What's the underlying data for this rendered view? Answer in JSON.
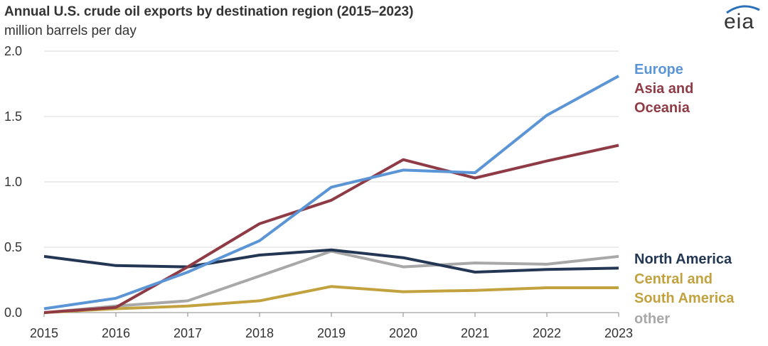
{
  "header": {
    "title": "Annual U.S. crude oil exports by destination region (2015–2023)",
    "subtitle": "million barrels per day",
    "logo_text": "eia"
  },
  "chart_data": {
    "type": "line",
    "title": "Annual U.S. crude oil exports by destination region (2015–2023)",
    "ylabel": "million barrels per day",
    "xlabel": "",
    "x": [
      2015,
      2016,
      2017,
      2018,
      2019,
      2020,
      2021,
      2022,
      2023
    ],
    "ylim": [
      0,
      2.0
    ],
    "yticks": [
      "0.0",
      "0.5",
      "1.0",
      "1.5",
      "2.0"
    ],
    "grid": true,
    "legend": "right (direct labels)",
    "series": [
      {
        "name": "Europe",
        "label_lines": [
          "Europe"
        ],
        "color": "#5b95d6",
        "values": [
          0.03,
          0.11,
          0.31,
          0.55,
          0.96,
          1.09,
          1.07,
          1.51,
          1.81
        ]
      },
      {
        "name": "Asia and Oceania",
        "label_lines": [
          "Asia and",
          "Oceania"
        ],
        "color": "#8f3b46",
        "values": [
          0.0,
          0.04,
          0.35,
          0.68,
          0.86,
          1.17,
          1.03,
          1.16,
          1.28
        ]
      },
      {
        "name": "North America",
        "label_lines": [
          "North America"
        ],
        "color": "#233754",
        "values": [
          0.43,
          0.36,
          0.35,
          0.44,
          0.48,
          0.42,
          0.31,
          0.33,
          0.34
        ]
      },
      {
        "name": "Central and South America",
        "label_lines": [
          "Central and",
          "South America"
        ],
        "color": "#c2a23f",
        "values": [
          0.0,
          0.03,
          0.05,
          0.09,
          0.2,
          0.16,
          0.17,
          0.19,
          0.19
        ]
      },
      {
        "name": "other",
        "label_lines": [
          "other"
        ],
        "color": "#a8a8a8",
        "values": [
          0.0,
          0.05,
          0.09,
          0.28,
          0.47,
          0.35,
          0.38,
          0.37,
          0.43
        ]
      }
    ]
  }
}
